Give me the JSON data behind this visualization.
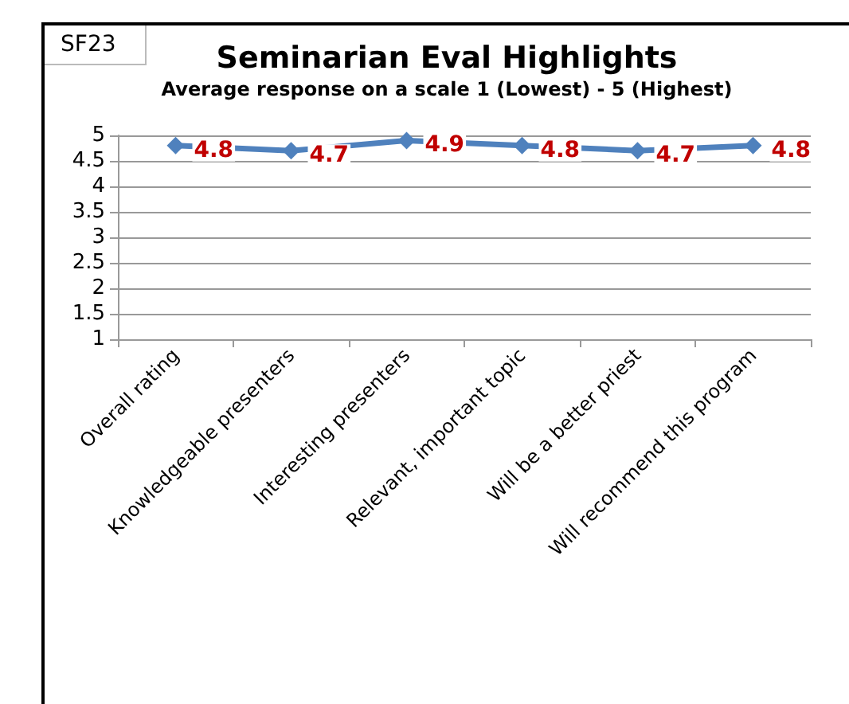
{
  "chart_data": {
    "type": "line",
    "title": "Seminarian Eval Highlights",
    "subtitle": "Average response on a scale 1 (Lowest) - 5 (Highest)",
    "categories": [
      "Overall rating",
      "Knowledgeable presenters",
      "Interesting presenters",
      "Relevant, important topic",
      "Will be a better priest",
      "Will recommend this program"
    ],
    "series": [
      {
        "color": "#4f81bd",
        "values": [
          4.8,
          4.7,
          4.9,
          4.8,
          4.7,
          4.8
        ]
      }
    ],
    "ylim": [
      1,
      5
    ],
    "yticks": [
      1,
      1.5,
      2,
      2.5,
      3,
      3.5,
      4,
      4.5,
      5
    ],
    "grid": "y",
    "marker": "diamond",
    "line_style": "solid",
    "data_labels": true,
    "annotations": [
      "SF23"
    ]
  }
}
